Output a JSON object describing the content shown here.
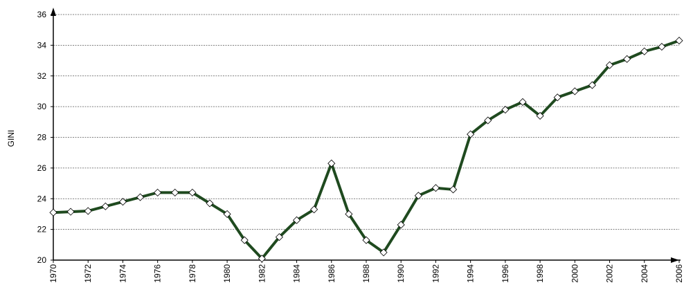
{
  "chart_data": {
    "type": "line",
    "y_label": "GINI",
    "x": [
      1970,
      1971,
      1972,
      1973,
      1974,
      1975,
      1976,
      1977,
      1978,
      1979,
      1980,
      1981,
      1982,
      1983,
      1984,
      1985,
      1986,
      1987,
      1988,
      1989,
      1990,
      1991,
      1992,
      1993,
      1994,
      1995,
      1996,
      1997,
      1998,
      1999,
      2000,
      2001,
      2002,
      2003,
      2004,
      2005,
      2006
    ],
    "series": [
      {
        "color": "#1f4a1f",
        "values": [
          23.1,
          23.15,
          23.2,
          23.5,
          23.8,
          24.1,
          24.4,
          24.4,
          24.4,
          23.7,
          23.0,
          21.3,
          20.1,
          21.5,
          22.6,
          23.3,
          26.3,
          23.0,
          21.3,
          20.5,
          22.3,
          24.2,
          24.7,
          24.6,
          28.2,
          29.1,
          29.8,
          30.3,
          29.4,
          30.6,
          31.0,
          31.4,
          32.7,
          33.1,
          33.6,
          33.9,
          34.3
        ]
      }
    ],
    "xlim": [
      1970,
      2006
    ],
    "xticks": [
      1970,
      1972,
      1974,
      1976,
      1978,
      1980,
      1982,
      1984,
      1986,
      1988,
      1990,
      1992,
      1994,
      1996,
      1998,
      2000,
      2002,
      2004,
      2006
    ],
    "ylim": [
      20,
      36
    ],
    "yticks": [
      20,
      22,
      24,
      26,
      28,
      30,
      32,
      34,
      36
    ],
    "grid": true
  }
}
